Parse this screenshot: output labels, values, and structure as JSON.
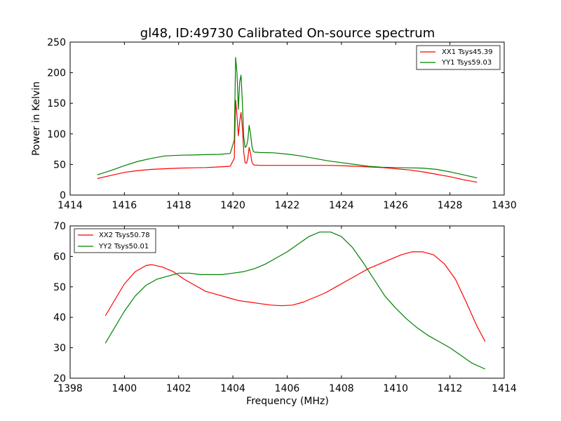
{
  "chart_data": [
    {
      "type": "line",
      "title": "gl48, ID:49730 Calibrated On-source spectrum",
      "xlabel": "",
      "ylabel": "Power in Kelvin",
      "xlim": [
        1414,
        1430
      ],
      "ylim": [
        0,
        250
      ],
      "x_ticks": [
        1414,
        1416,
        1418,
        1420,
        1422,
        1424,
        1426,
        1428,
        1430
      ],
      "y_ticks": [
        0,
        50,
        100,
        150,
        200,
        250
      ],
      "grid": false,
      "legend_position": "upper right",
      "series": [
        {
          "name": "XX1 Tsys45.39",
          "color": "#ff0000",
          "x": [
            1415.0,
            1415.5,
            1416.0,
            1416.5,
            1417.0,
            1417.5,
            1418.0,
            1418.5,
            1419.0,
            1419.5,
            1419.9,
            1420.05,
            1420.1,
            1420.15,
            1420.2,
            1420.25,
            1420.3,
            1420.35,
            1420.4,
            1420.45,
            1420.5,
            1420.55,
            1420.6,
            1420.65,
            1420.7,
            1420.75,
            1420.8,
            1420.9,
            1421.0,
            1421.5,
            1422.0,
            1422.5,
            1423.0,
            1423.5,
            1424.0,
            1424.5,
            1425.0,
            1425.5,
            1426.0,
            1426.5,
            1427.0,
            1427.5,
            1428.0,
            1428.5,
            1429.0
          ],
          "y": [
            27,
            32,
            37,
            40,
            42,
            43,
            44,
            44.5,
            45,
            46,
            47,
            60,
            155,
            130,
            97,
            120,
            135,
            110,
            70,
            53,
            52,
            60,
            78,
            68,
            54,
            50,
            49,
            49,
            48.5,
            48.5,
            48.5,
            48.5,
            48.5,
            48.5,
            48,
            47,
            46,
            45,
            43,
            41,
            38,
            34,
            30,
            25,
            21
          ]
        },
        {
          "name": "YY1 Tsys59.03",
          "color": "#008000",
          "x": [
            1415.0,
            1415.5,
            1416.0,
            1416.5,
            1417.0,
            1417.5,
            1418.0,
            1418.5,
            1419.0,
            1419.5,
            1419.9,
            1420.05,
            1420.1,
            1420.15,
            1420.2,
            1420.25,
            1420.3,
            1420.35,
            1420.4,
            1420.45,
            1420.5,
            1420.55,
            1420.6,
            1420.65,
            1420.7,
            1420.75,
            1420.8,
            1420.9,
            1421.0,
            1421.5,
            1422.0,
            1422.5,
            1423.0,
            1423.5,
            1424.0,
            1424.5,
            1425.0,
            1425.5,
            1426.0,
            1426.5,
            1427.0,
            1427.5,
            1428.0,
            1428.5,
            1429.0
          ],
          "y": [
            33,
            40,
            48,
            55,
            60,
            64,
            65,
            65.5,
            66,
            66.5,
            68,
            90,
            225,
            200,
            140,
            185,
            196,
            150,
            95,
            78,
            80,
            90,
            114,
            100,
            80,
            72,
            70,
            70,
            69.5,
            69,
            67,
            64,
            60,
            56,
            53,
            50,
            47,
            45.5,
            45,
            44.5,
            44,
            42,
            38,
            33,
            28
          ]
        }
      ]
    },
    {
      "type": "line",
      "title": "",
      "xlabel": "Frequency (MHz)",
      "ylabel": "",
      "xlim": [
        1398,
        1414
      ],
      "ylim": [
        20,
        70
      ],
      "x_ticks": [
        1398,
        1400,
        1402,
        1404,
        1406,
        1408,
        1410,
        1412,
        1414
      ],
      "y_ticks": [
        20,
        30,
        40,
        50,
        60,
        70
      ],
      "grid": false,
      "legend_position": "upper left",
      "series": [
        {
          "name": "XX2 Tsys50.78",
          "color": "#ff0000",
          "x": [
            1399.3,
            1399.6,
            1400.0,
            1400.4,
            1400.8,
            1401.0,
            1401.4,
            1401.8,
            1402.2,
            1402.6,
            1403.0,
            1403.4,
            1403.8,
            1404.2,
            1404.6,
            1405.0,
            1405.4,
            1405.8,
            1406.2,
            1406.6,
            1407.0,
            1407.4,
            1407.8,
            1408.2,
            1408.6,
            1409.0,
            1409.4,
            1409.8,
            1410.2,
            1410.6,
            1411.0,
            1411.4,
            1411.8,
            1412.2,
            1412.6,
            1413.0,
            1413.3
          ],
          "y": [
            40.5,
            45,
            51,
            55,
            57,
            57.3,
            56.5,
            55,
            52.5,
            50.5,
            48.5,
            47.5,
            46.5,
            45.5,
            45,
            44.5,
            44,
            43.8,
            44,
            45,
            46.5,
            48,
            50,
            52,
            54,
            56,
            57.5,
            59,
            60.5,
            61.5,
            61.5,
            60.5,
            57.5,
            52.5,
            45,
            37,
            32
          ]
        },
        {
          "name": "YY2 Tsys50.01",
          "color": "#008000",
          "x": [
            1399.3,
            1399.6,
            1400.0,
            1400.4,
            1400.8,
            1401.2,
            1401.6,
            1402.0,
            1402.4,
            1402.8,
            1403.2,
            1403.6,
            1404.0,
            1404.4,
            1404.8,
            1405.2,
            1405.6,
            1406.0,
            1406.4,
            1406.8,
            1407.2,
            1407.6,
            1408.0,
            1408.4,
            1408.8,
            1409.2,
            1409.6,
            1410.0,
            1410.4,
            1410.8,
            1411.2,
            1411.6,
            1412.0,
            1412.4,
            1412.8,
            1413.3
          ],
          "y": [
            31.5,
            36,
            42,
            47,
            50.5,
            52.5,
            53.5,
            54.5,
            54.5,
            54,
            54,
            54,
            54.5,
            55,
            56,
            57.5,
            59.5,
            61.5,
            64,
            66.5,
            68,
            68,
            66.5,
            63,
            58,
            52.5,
            47,
            43,
            39.5,
            36.5,
            34,
            32,
            30,
            27.5,
            25,
            23
          ]
        }
      ]
    }
  ]
}
